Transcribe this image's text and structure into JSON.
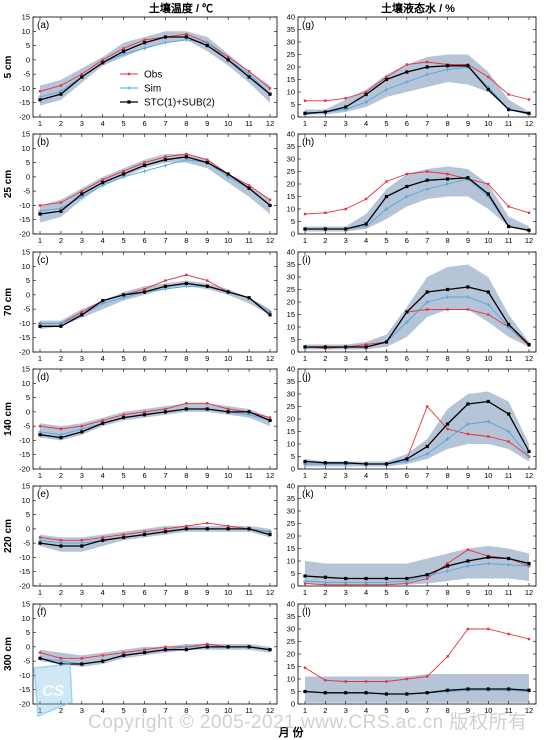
{
  "figure": {
    "left_title": "土壤温度 / ℃",
    "right_title": "土壤液态水 / %",
    "xlabel": "月 份",
    "watermark": "Copyright © 2005-2021 www.CRS.ac.cn 版权所有"
  },
  "colors": {
    "obs": "#e8323c",
    "sim": "#4da6e0",
    "stc": "#000000",
    "band": "#b6c4d8"
  },
  "legend": {
    "location": "panel (a), upper center",
    "items": [
      "Obs",
      "Sim",
      "STC(1)+SUB(2)"
    ]
  },
  "chart_data": [
    {
      "id": "a",
      "label": "(a)",
      "depth": "5 cm",
      "type": "line",
      "kind": "temp",
      "x": [
        1,
        2,
        3,
        4,
        5,
        6,
        7,
        8,
        9,
        10,
        11,
        12
      ],
      "ylim": [
        -20,
        15
      ],
      "ylabel": "5 cm",
      "band_low": [
        -16,
        -14,
        -8,
        -2,
        1,
        4,
        6,
        7,
        3,
        -2,
        -8,
        -15
      ],
      "band_high": [
        -9,
        -7,
        -3,
        1,
        6,
        8,
        10,
        10,
        8,
        2,
        -4,
        -9
      ],
      "series": [
        {
          "name": "Obs",
          "values": [
            -11,
            -9,
            -5,
            0,
            4,
            7,
            8,
            9,
            6,
            1,
            -4,
            -10
          ]
        },
        {
          "name": "Sim",
          "values": [
            -13,
            -11,
            -6,
            -1,
            2,
            4,
            6,
            7,
            6,
            0,
            -5,
            -12
          ]
        },
        {
          "name": "STC(1)+SUB(2)",
          "values": [
            -14,
            -12,
            -6,
            -1,
            3,
            6,
            8,
            8,
            5,
            0,
            -6,
            -12
          ]
        }
      ]
    },
    {
      "id": "b",
      "label": "(b)",
      "depth": "25 cm",
      "type": "line",
      "kind": "temp",
      "x": [
        1,
        2,
        3,
        4,
        5,
        6,
        7,
        8,
        9,
        10,
        11,
        12
      ],
      "ylim": [
        -20,
        15
      ],
      "ylabel": "25 cm",
      "band_low": [
        -16,
        -14,
        -8,
        -3,
        0,
        3,
        5,
        5,
        3,
        -2,
        -7,
        -13
      ],
      "band_high": [
        -10,
        -8,
        -4,
        0,
        3,
        6,
        8,
        8,
        6,
        1,
        -3,
        -8
      ],
      "series": [
        {
          "name": "Obs",
          "values": [
            -10,
            -9,
            -5,
            -1,
            2,
            5,
            7,
            8,
            6,
            1,
            -3,
            -8
          ]
        },
        {
          "name": "Sim",
          "values": [
            -12,
            -11,
            -7,
            -3,
            0,
            2,
            4,
            6,
            5,
            0,
            -4,
            -10
          ]
        },
        {
          "name": "STC(1)+SUB(2)",
          "values": [
            -13,
            -12,
            -6,
            -2,
            1,
            4,
            6,
            7,
            5,
            1,
            -4,
            -10
          ]
        }
      ]
    },
    {
      "id": "c",
      "label": "(c)",
      "depth": "70 cm",
      "type": "line",
      "kind": "temp",
      "x": [
        1,
        2,
        3,
        4,
        5,
        6,
        7,
        8,
        9,
        10,
        11,
        12
      ],
      "ylim": [
        -20,
        15
      ],
      "ylabel": "70 cm",
      "band_low": [
        -12,
        -11,
        -8,
        -5,
        -2,
        0,
        2,
        3,
        2,
        0,
        -3,
        -7
      ],
      "band_high": [
        -9,
        -9,
        -5,
        -2,
        1,
        3,
        4,
        5,
        4,
        2,
        -1,
        -5
      ],
      "series": [
        {
          "name": "Obs",
          "values": [
            -10,
            -10,
            -6,
            -2,
            0,
            2,
            5,
            7,
            5,
            1,
            -1,
            -6
          ]
        },
        {
          "name": "Sim",
          "values": [
            -10,
            -10,
            -7,
            -3,
            -1,
            1,
            2,
            3,
            3,
            1,
            -1,
            -6
          ]
        },
        {
          "name": "STC(1)+SUB(2)",
          "values": [
            -11,
            -11,
            -7,
            -2,
            0,
            1,
            3,
            4,
            3,
            1,
            -1,
            -7
          ]
        }
      ]
    },
    {
      "id": "d",
      "label": "(d)",
      "depth": "140 cm",
      "type": "line",
      "kind": "temp",
      "x": [
        1,
        2,
        3,
        4,
        5,
        6,
        7,
        8,
        9,
        10,
        11,
        12
      ],
      "ylim": [
        -20,
        15
      ],
      "ylabel": "140 cm",
      "band_low": [
        -9,
        -10,
        -8,
        -5,
        -3,
        -2,
        -1,
        0,
        0,
        -1,
        -2,
        -5
      ],
      "band_high": [
        -4,
        -5,
        -4,
        -2,
        0,
        1,
        2,
        3,
        3,
        2,
        1,
        -2
      ],
      "series": [
        {
          "name": "Obs",
          "values": [
            -5,
            -6,
            -5,
            -3,
            -1,
            0,
            1,
            3,
            3,
            1,
            0,
            -2
          ]
        },
        {
          "name": "Sim",
          "values": [
            -7,
            -8,
            -6,
            -4,
            -2,
            -1,
            0,
            1,
            1,
            0,
            -1,
            -3
          ]
        },
        {
          "name": "STC(1)+SUB(2)",
          "values": [
            -8,
            -9,
            -7,
            -4,
            -2,
            -1,
            0,
            1,
            1,
            0,
            0,
            -3
          ]
        }
      ]
    },
    {
      "id": "e",
      "label": "(e)",
      "depth": "220 cm",
      "type": "line",
      "kind": "temp",
      "x": [
        1,
        2,
        3,
        4,
        5,
        6,
        7,
        8,
        9,
        10,
        11,
        12
      ],
      "ylim": [
        -20,
        15
      ],
      "ylabel": "220 cm",
      "band_low": [
        -6,
        -8,
        -8,
        -6,
        -4,
        -3,
        -2,
        -1,
        -1,
        -1,
        -1,
        -3
      ],
      "band_high": [
        -2,
        -3,
        -3,
        -2,
        -1,
        0,
        1,
        1,
        1,
        1,
        1,
        0
      ],
      "series": [
        {
          "name": "Obs",
          "values": [
            -3,
            -4,
            -4,
            -3,
            -2,
            -1,
            0,
            1,
            2,
            1,
            0,
            -1
          ]
        },
        {
          "name": "Sim",
          "values": [
            -4,
            -5,
            -5,
            -4,
            -3,
            -2,
            -1,
            0,
            0,
            0,
            0,
            -1
          ]
        },
        {
          "name": "STC(1)+SUB(2)",
          "values": [
            -5,
            -6,
            -6,
            -4,
            -3,
            -2,
            -1,
            0,
            0,
            0,
            0,
            -2
          ]
        }
      ]
    },
    {
      "id": "f",
      "label": "(f)",
      "depth": "300 cm",
      "type": "line",
      "kind": "temp",
      "x": [
        1,
        2,
        3,
        4,
        5,
        6,
        7,
        8,
        9,
        10,
        11,
        12
      ],
      "ylim": [
        -20,
        15
      ],
      "ylabel": "300 cm",
      "band_low": [
        -5,
        -6,
        -7,
        -6,
        -4,
        -3,
        -2,
        -1,
        -1,
        -1,
        -1,
        -2
      ],
      "band_high": [
        -1,
        -2,
        -3,
        -2,
        -1,
        0,
        0,
        1,
        1,
        1,
        1,
        0
      ],
      "series": [
        {
          "name": "Obs",
          "values": [
            -2,
            -4,
            -4,
            -3,
            -2,
            -1,
            0,
            0,
            1,
            0,
            0,
            -1
          ]
        },
        {
          "name": "Sim",
          "values": [
            -4,
            -5,
            -6,
            -5,
            -3,
            -2,
            -1,
            0,
            0,
            0,
            0,
            -1
          ]
        },
        {
          "name": "STC(1)+SUB(2)",
          "values": [
            -4,
            -6,
            -6,
            -5,
            -3,
            -2,
            -1,
            -1,
            0,
            0,
            0,
            -1
          ]
        }
      ]
    },
    {
      "id": "g",
      "label": "(g)",
      "depth": "5 cm",
      "type": "line",
      "kind": "moist",
      "x": [
        1,
        2,
        3,
        4,
        5,
        6,
        7,
        8,
        9,
        10,
        11,
        12
      ],
      "ylim": [
        0,
        40
      ],
      "band_low": [
        1,
        1,
        2,
        4,
        8,
        10,
        12,
        14,
        13,
        10,
        3,
        1
      ],
      "band_high": [
        3,
        3,
        7,
        11,
        17,
        21,
        24,
        25,
        25,
        18,
        7,
        2
      ],
      "series": [
        {
          "name": "Obs",
          "values": [
            6.5,
            6.5,
            7.5,
            10,
            16,
            21,
            22,
            21,
            21,
            16,
            9,
            7
          ]
        },
        {
          "name": "Sim",
          "values": [
            1,
            2,
            3,
            6,
            11,
            14,
            17,
            19,
            20,
            12,
            3,
            1
          ]
        },
        {
          "name": "STC(1)+SUB(2)",
          "values": [
            1.5,
            2,
            4,
            9,
            15,
            18,
            20,
            20.5,
            20.5,
            11,
            3,
            1.5
          ]
        }
      ]
    },
    {
      "id": "h",
      "label": "(h)",
      "depth": "25 cm",
      "type": "line",
      "kind": "moist",
      "x": [
        1,
        2,
        3,
        4,
        5,
        6,
        7,
        8,
        9,
        10,
        11,
        12
      ],
      "ylim": [
        0,
        40
      ],
      "band_low": [
        1,
        1,
        1,
        2,
        6,
        11,
        14,
        15,
        15,
        10,
        3,
        1
      ],
      "band_high": [
        3,
        3,
        3,
        8,
        18,
        24,
        26,
        27,
        26,
        20,
        7,
        3
      ],
      "series": [
        {
          "name": "Obs",
          "values": [
            8,
            8.5,
            10,
            14,
            21,
            24,
            25,
            24,
            22,
            20,
            11,
            8.5
          ]
        },
        {
          "name": "Sim",
          "values": [
            2,
            2,
            2,
            3,
            10,
            15,
            18,
            20,
            22,
            15,
            3,
            1.5
          ]
        },
        {
          "name": "STC(1)+SUB(2)",
          "values": [
            2,
            2,
            2,
            4,
            15,
            19,
            21.5,
            22,
            22.5,
            16,
            3,
            1.5
          ]
        }
      ]
    },
    {
      "id": "i",
      "label": "(i)",
      "depth": "70 cm",
      "type": "line",
      "kind": "moist",
      "x": [
        1,
        2,
        3,
        4,
        5,
        6,
        7,
        8,
        9,
        10,
        11,
        12
      ],
      "ylim": [
        0,
        40
      ],
      "band_low": [
        1,
        1,
        1,
        1,
        2,
        6,
        14,
        17,
        17,
        12,
        6,
        2
      ],
      "band_high": [
        3,
        3,
        3,
        4,
        7,
        18,
        30,
        34,
        35,
        30,
        15,
        4
      ],
      "series": [
        {
          "name": "Obs",
          "values": [
            2,
            1.5,
            2,
            3,
            4,
            16,
            17,
            17,
            17,
            15,
            10,
            2.5
          ]
        },
        {
          "name": "Sim",
          "values": [
            2,
            2,
            2,
            2,
            4,
            12,
            20,
            22,
            22,
            19,
            10,
            3
          ]
        },
        {
          "name": "STC(1)+SUB(2)",
          "values": [
            2,
            2,
            2,
            2,
            4,
            16,
            24,
            25,
            26,
            24,
            11,
            3
          ]
        }
      ]
    },
    {
      "id": "j",
      "label": "(j)",
      "depth": "140 cm",
      "type": "line",
      "kind": "moist",
      "x": [
        1,
        2,
        3,
        4,
        5,
        6,
        7,
        8,
        9,
        10,
        11,
        12
      ],
      "ylim": [
        0,
        40
      ],
      "band_low": [
        1,
        1,
        1,
        1,
        1,
        2,
        4,
        8,
        10,
        10,
        8,
        3
      ],
      "band_high": [
        4,
        3,
        3,
        3,
        3,
        6,
        12,
        24,
        30,
        31,
        27,
        10
      ],
      "series": [
        {
          "name": "Obs",
          "values": [
            2,
            2,
            2,
            2,
            2,
            4,
            25,
            16,
            14,
            13,
            11,
            5
          ]
        },
        {
          "name": "Sim",
          "values": [
            2,
            2,
            2,
            2,
            2,
            3,
            6,
            12,
            18,
            19,
            15,
            5
          ]
        },
        {
          "name": "STC(1)+SUB(2)",
          "values": [
            3,
            2.5,
            2.5,
            2,
            2,
            4,
            9,
            18,
            26,
            27,
            22,
            7
          ]
        }
      ]
    },
    {
      "id": "k",
      "label": "(k)",
      "depth": "220 cm",
      "type": "line",
      "kind": "moist",
      "x": [
        1,
        2,
        3,
        4,
        5,
        6,
        7,
        8,
        9,
        10,
        11,
        12
      ],
      "ylim": [
        0,
        40
      ],
      "band_low": [
        1,
        0.5,
        0.5,
        0.5,
        0.5,
        0.5,
        1,
        2,
        3,
        3,
        3,
        2
      ],
      "band_high": [
        10,
        9,
        9,
        9,
        9,
        9,
        11,
        13,
        15,
        16,
        15,
        13
      ],
      "series": [
        {
          "name": "Obs",
          "values": [
            1,
            0.5,
            0.5,
            0.5,
            0.5,
            1,
            3,
            9,
            14.5,
            12,
            11,
            8
          ]
        },
        {
          "name": "Sim",
          "values": [
            2,
            1.5,
            1.5,
            1.5,
            1.5,
            2,
            4,
            6,
            8,
            9,
            8.5,
            8
          ]
        },
        {
          "name": "STC(1)+SUB(2)",
          "values": [
            4,
            3.5,
            3,
            3,
            3,
            3,
            4.5,
            8,
            10,
            11.5,
            11,
            9
          ]
        }
      ]
    },
    {
      "id": "l",
      "label": "(l)",
      "depth": "300 cm",
      "type": "line",
      "kind": "moist",
      "x": [
        1,
        2,
        3,
        4,
        5,
        6,
        7,
        8,
        9,
        10,
        11,
        12
      ],
      "ylim": [
        0,
        40
      ],
      "band_low": [
        0.5,
        0.5,
        0.5,
        0.5,
        0.5,
        0.5,
        0.5,
        0.5,
        0.5,
        0.5,
        0.5,
        0.5
      ],
      "band_high": [
        11,
        11,
        11,
        11,
        11,
        11,
        12,
        12,
        12,
        12,
        12,
        12
      ],
      "series": [
        {
          "name": "Obs",
          "values": [
            14.5,
            9.5,
            9,
            9,
            9,
            10,
            11,
            19,
            30,
            30,
            28,
            26
          ]
        },
        {
          "name": "Sim",
          "values": [
            5,
            4.5,
            4.5,
            4.5,
            4,
            4,
            4.5,
            5,
            5.5,
            5.5,
            5.5,
            5
          ]
        },
        {
          "name": "STC(1)+SUB(2)",
          "values": [
            5,
            4.5,
            4.5,
            4.5,
            4,
            4,
            4.5,
            5.5,
            6,
            6,
            6,
            5.5
          ]
        }
      ]
    }
  ]
}
